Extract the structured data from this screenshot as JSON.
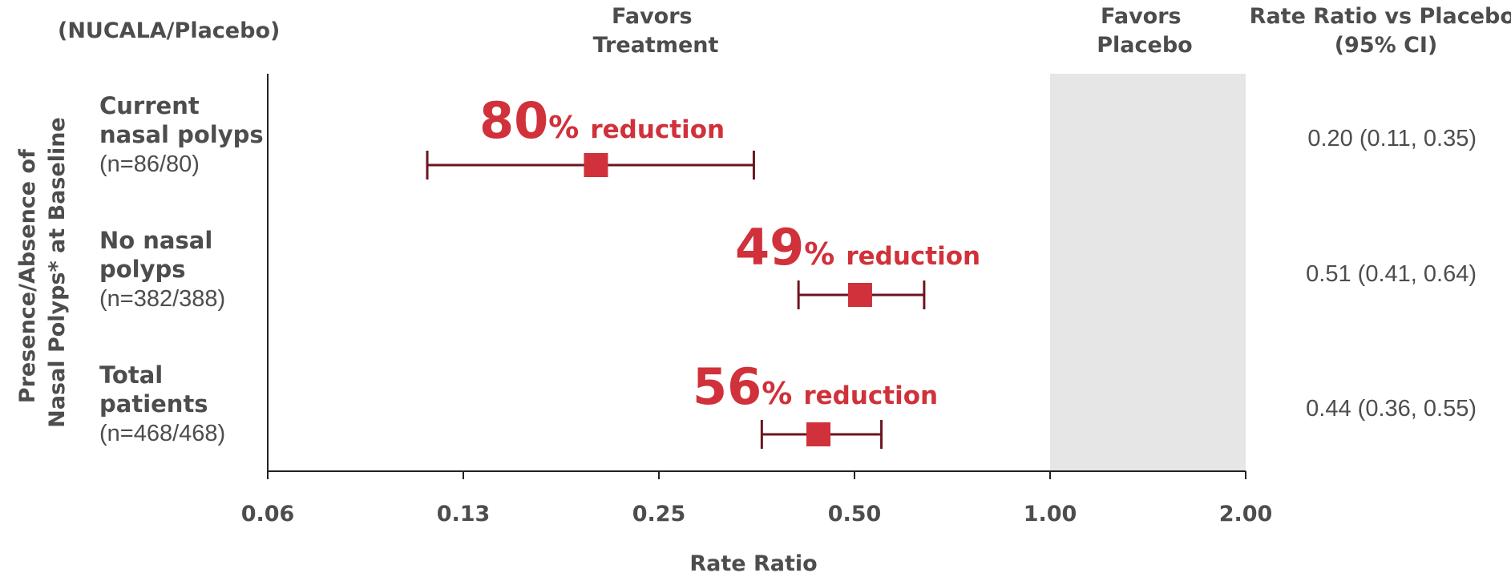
{
  "chart_data": {
    "type": "forest",
    "x_scale": "log2",
    "xlim": [
      0.0625,
      2.0
    ],
    "xlabel": "Rate Ratio",
    "ylabel_lines": [
      "Presence/Absence of",
      "Nasal Polyps* at Baseline"
    ],
    "x_ticks": [
      {
        "value": 0.0625,
        "label": "0.06"
      },
      {
        "value": 0.125,
        "label": "0.13"
      },
      {
        "value": 0.25,
        "label": "0.25"
      },
      {
        "value": 0.5,
        "label": "0.50"
      },
      {
        "value": 1.0,
        "label": "1.00"
      },
      {
        "value": 2.0,
        "label": "2.00"
      }
    ],
    "shaded_region": {
      "from": 1.0,
      "to": 2.0,
      "color": "#e6e6e6"
    },
    "header_left": "(NUCALA/Placebo)",
    "header_favors_treatment": [
      "Favors",
      "Treatment"
    ],
    "header_favors_placebo": [
      "Favors",
      "Placebo"
    ],
    "header_ci": [
      "Rate Ratio vs Placebo",
      "(95% CI)"
    ],
    "rows": [
      {
        "label_lines": [
          "Current",
          "nasal polyps"
        ],
        "n": "(n=86/80)",
        "estimate": 0.2,
        "lower": 0.11,
        "upper": 0.35,
        "ci_text": "0.20 (0.11, 0.35)",
        "reduction_pct": "80",
        "reduction_pct_sign": "%",
        "reduction_word": "reduction"
      },
      {
        "label_lines": [
          "No nasal",
          "polyps"
        ],
        "n": "(n=382/388)",
        "estimate": 0.51,
        "lower": 0.41,
        "upper": 0.64,
        "ci_text": "0.51 (0.41, 0.64)",
        "reduction_pct": "49",
        "reduction_pct_sign": "%",
        "reduction_word": "reduction"
      },
      {
        "label_lines": [
          "Total",
          "patients"
        ],
        "n": "(n=468/468)",
        "estimate": 0.44,
        "lower": 0.36,
        "upper": 0.55,
        "ci_text": "0.44 (0.36, 0.55)",
        "reduction_pct": "56",
        "reduction_pct_sign": "%",
        "reduction_word": "reduction"
      }
    ],
    "colors": {
      "marker": "#d0313a",
      "whisker": "#6b1620",
      "reduction_text": "#d0313a",
      "axis": "#222222",
      "text": "#4d4d4d"
    }
  }
}
